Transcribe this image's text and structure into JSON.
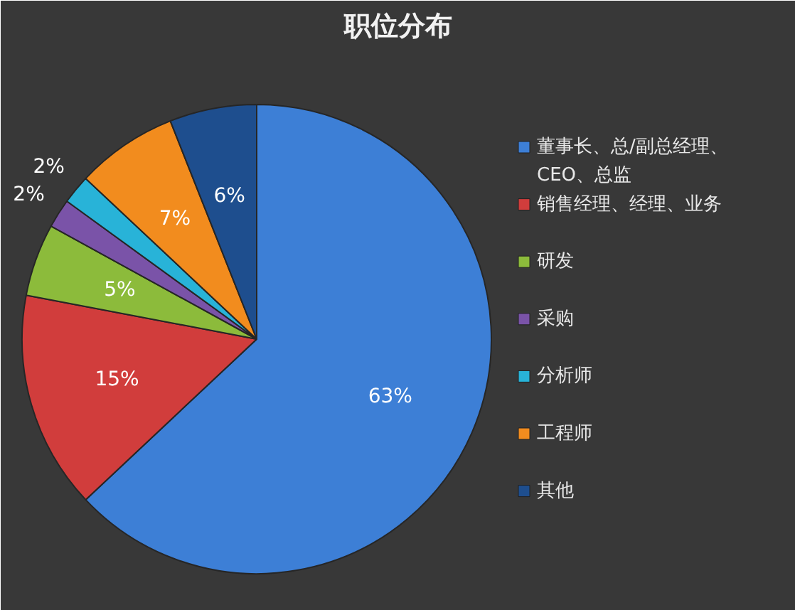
{
  "chart_data": {
    "type": "pie",
    "title": "职位分布",
    "categories": [
      "董事长、总/副总经理、CEO、总监",
      "销售经理、经理、业务",
      "研发",
      "采购",
      "分析师",
      "工程师",
      "其他"
    ],
    "values": [
      63,
      15,
      5,
      2,
      2,
      7,
      6
    ],
    "colors": [
      "#3d7fd6",
      "#d13d3c",
      "#8cbb3b",
      "#7a53a8",
      "#28b3d8",
      "#f28c1e",
      "#1e4e8e"
    ],
    "value_labels": [
      "63%",
      "15%",
      "5%",
      "2%",
      "2%",
      "7%",
      "6%"
    ],
    "legend": "right"
  }
}
